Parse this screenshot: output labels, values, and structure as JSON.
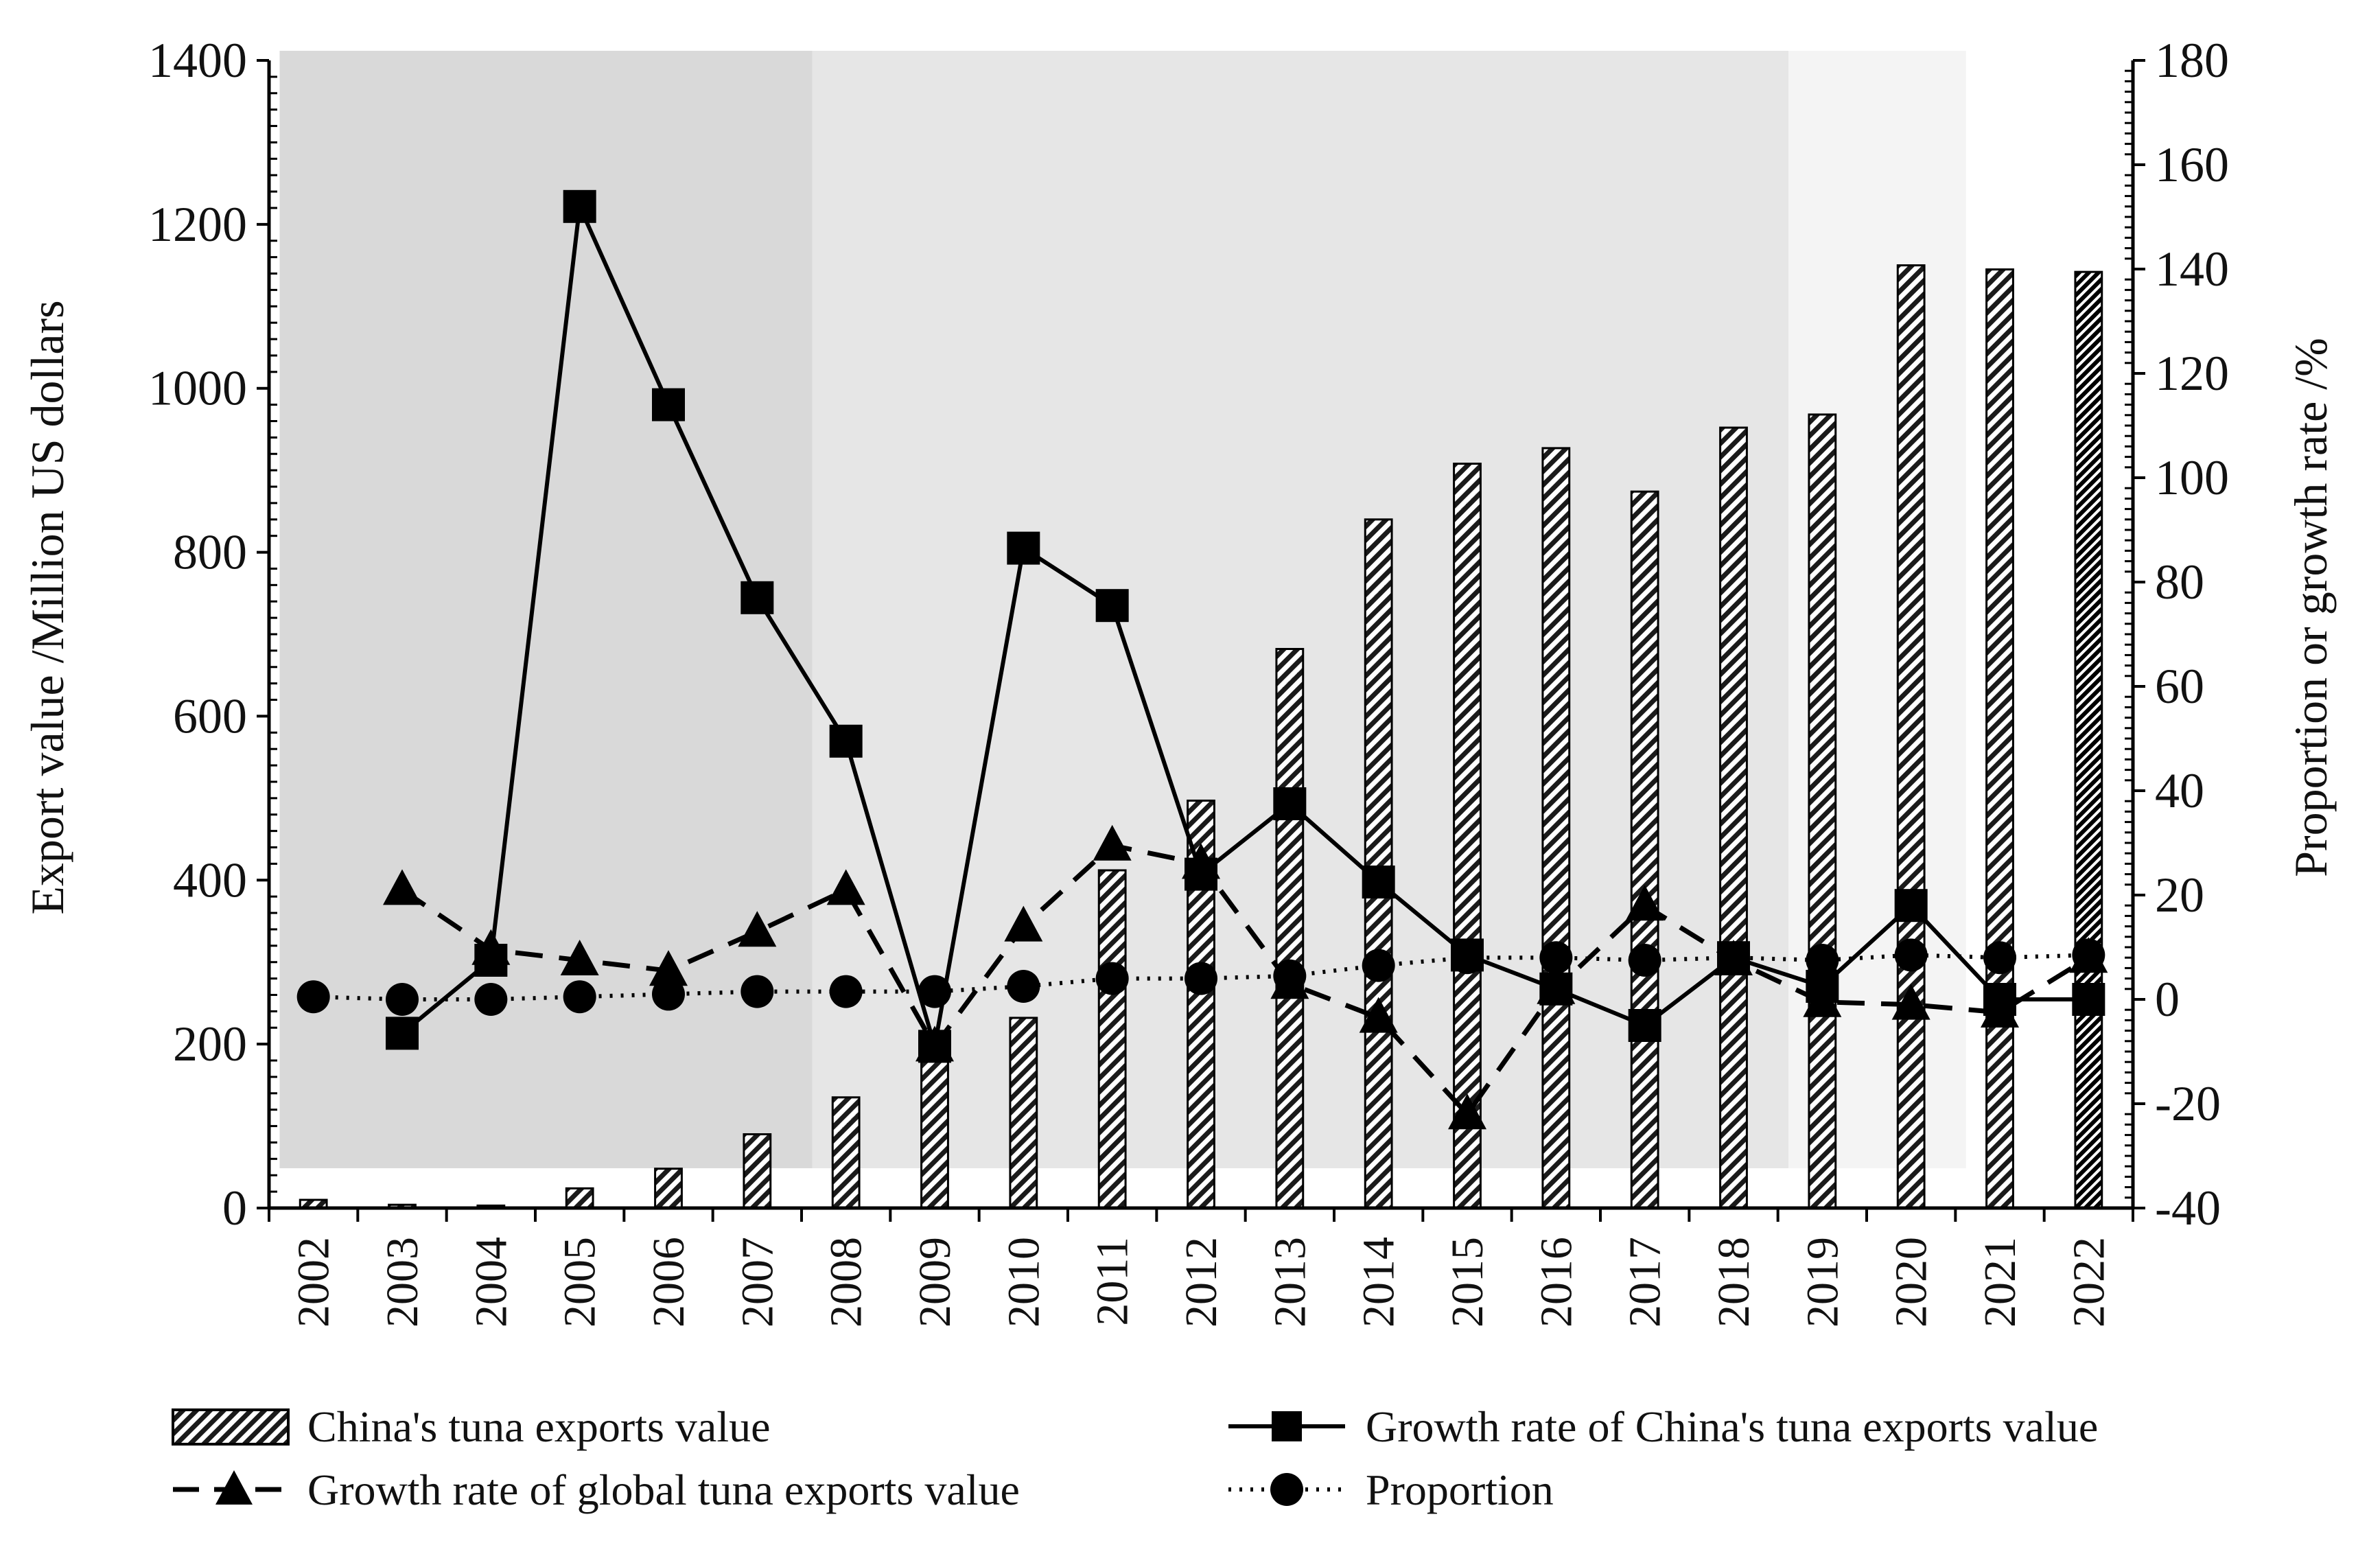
{
  "chart_data": {
    "type": "bar+line",
    "categories": [
      "2002",
      "2003",
      "2004",
      "2005",
      "2006",
      "2007",
      "2008",
      "2009",
      "2010",
      "2011",
      "2012",
      "2013",
      "2014",
      "2015",
      "2016",
      "2017",
      "2018",
      "2019",
      "2020",
      "2021",
      "2022"
    ],
    "y_left": {
      "label": "Export value /Million US dollars",
      "range": [
        0,
        1400
      ],
      "ticks": [
        "0",
        "200",
        "400",
        "600",
        "800",
        "1000",
        "1200",
        "1400"
      ],
      "tick_values": [
        0,
        200,
        400,
        600,
        800,
        1000,
        1200,
        1400
      ]
    },
    "y_right": {
      "label": "Proportion or growth rate /%",
      "range": [
        -40,
        180
      ],
      "ticks": [
        "-40",
        "-20",
        "0",
        "20",
        "40",
        "60",
        "80",
        "100",
        "120",
        "140",
        "160",
        "180"
      ],
      "tick_values": [
        -40,
        -20,
        0,
        20,
        40,
        60,
        80,
        100,
        120,
        140,
        160,
        180
      ]
    },
    "shaded_periods": [
      {
        "from_index": 0,
        "to_index": 6,
        "color": "#d9d9d9"
      },
      {
        "from_index": 6,
        "to_index": 17,
        "color": "#e6e6e6"
      },
      {
        "from_index": 17,
        "to_index": 19,
        "color": "#f4f4f4"
      }
    ],
    "series": [
      {
        "name": "China's tuna exports value",
        "type": "bar",
        "axis": "left",
        "values": [
          10,
          4,
          3,
          24,
          48,
          90,
          135,
          185,
          232,
          412,
          497,
          682,
          840,
          908,
          927,
          874,
          952,
          968,
          1150,
          1145,
          1142
        ]
      },
      {
        "name": "Growth rate of China's tuna exports value",
        "type": "line",
        "style": "solid",
        "marker": "square",
        "axis": "right",
        "values": [
          null,
          -6.5,
          7.5,
          152,
          114,
          77,
          49.5,
          -9,
          86.5,
          75.5,
          24,
          37.5,
          22.5,
          8.5,
          2,
          -5,
          8,
          2.5,
          18,
          0,
          0
        ]
      },
      {
        "name": "Growth rate of global tuna exports value",
        "type": "line",
        "style": "dashed",
        "marker": "triangle",
        "axis": "right",
        "values": [
          null,
          21,
          9.5,
          7.5,
          5.5,
          13,
          21,
          -9,
          14,
          29.5,
          26,
          3,
          -3.5,
          -22,
          2,
          18,
          7.5,
          -0.5,
          -1,
          -2.5,
          8
        ]
      },
      {
        "name": "Proportion",
        "type": "line",
        "style": "dotted",
        "marker": "circle",
        "axis": "right",
        "values": [
          0.5,
          0,
          0,
          0.5,
          1,
          1.5,
          1.5,
          1.5,
          2.5,
          4,
          4,
          4.5,
          6.5,
          8,
          8,
          7.5,
          8,
          7.5,
          8.5,
          8,
          8.5
        ]
      }
    ],
    "legend": {
      "position": "bottom",
      "items": [
        {
          "label": "China's tuna exports value",
          "kind": "bar"
        },
        {
          "label": "Growth rate of China's tuna exports value",
          "kind": "solid-square"
        },
        {
          "label": "Growth rate of global tuna exports value",
          "kind": "dashed-triangle"
        },
        {
          "label": "Proportion",
          "kind": "dotted-circle"
        }
      ]
    }
  }
}
